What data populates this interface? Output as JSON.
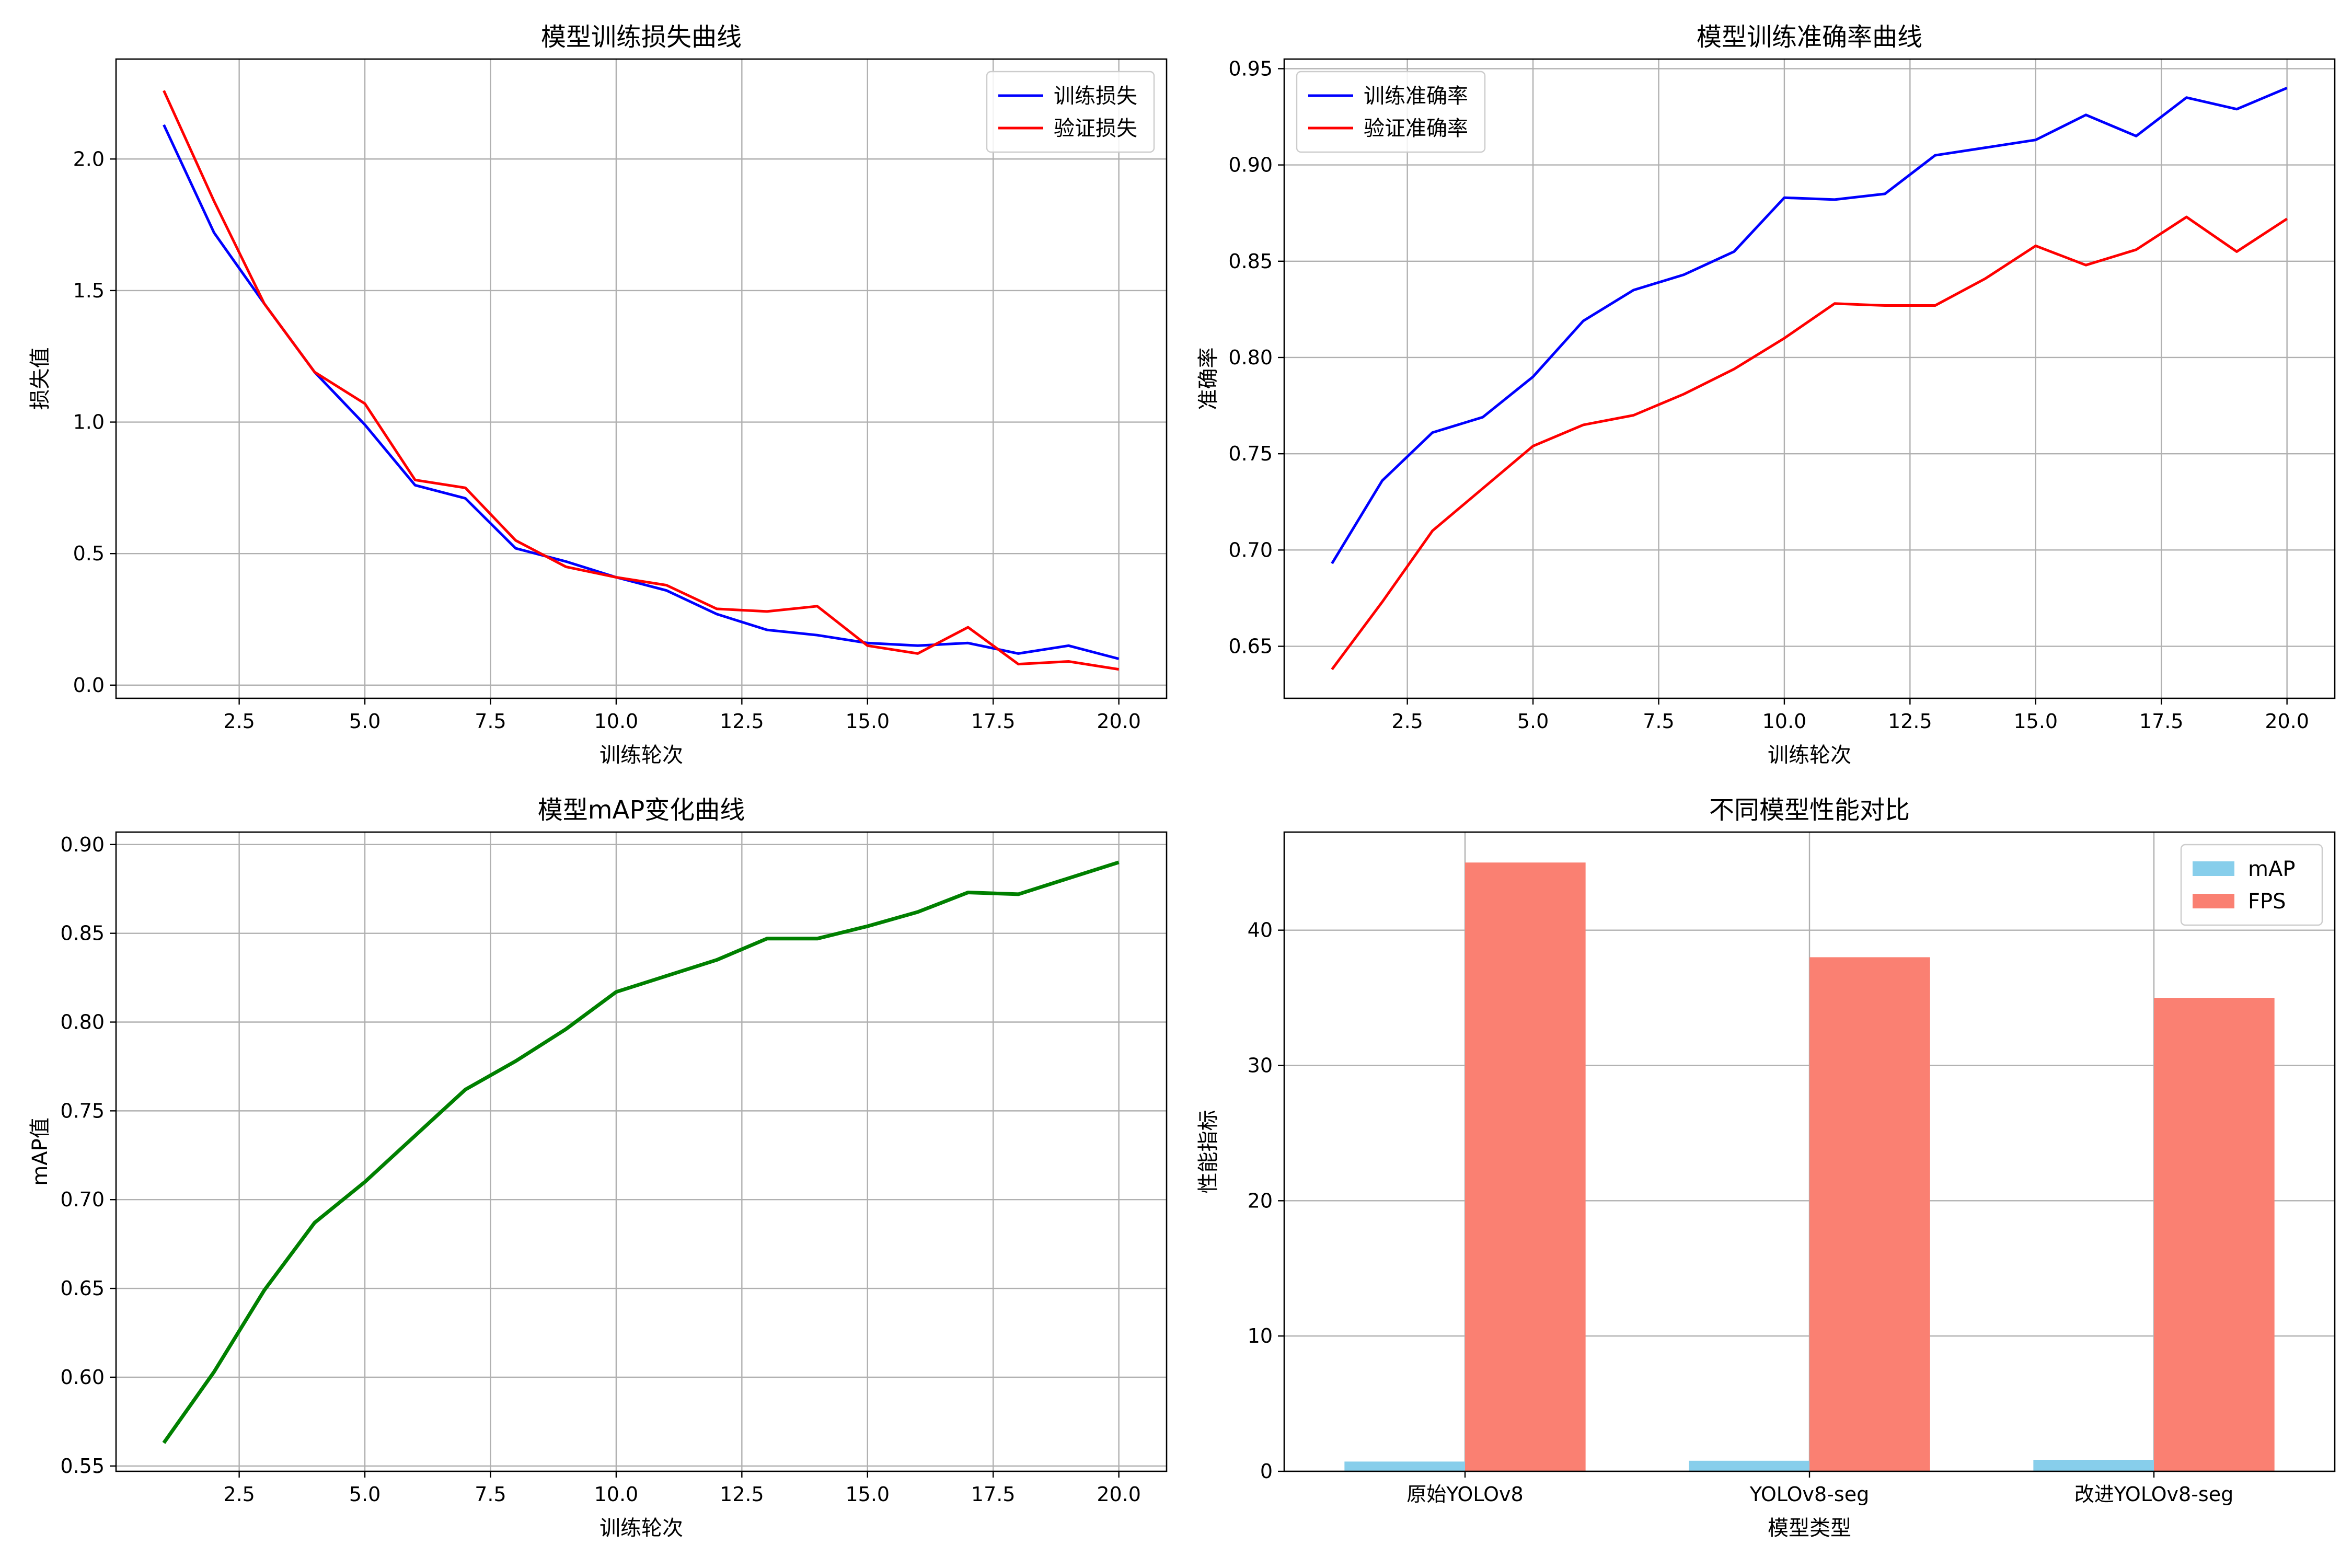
{
  "chart_data": [
    {
      "id": "loss",
      "type": "line",
      "title": "模型训练损失曲线",
      "xlabel": "训练轮次",
      "ylabel": "损失值",
      "grid": true,
      "legend_position": "top-right",
      "xlim": [
        0.05,
        20.95
      ],
      "ylim": [
        -0.05,
        2.38
      ],
      "xticks": [
        2.5,
        5.0,
        7.5,
        10.0,
        12.5,
        15.0,
        17.5,
        20.0
      ],
      "xtick_labels": [
        "2.5",
        "5.0",
        "7.5",
        "10.0",
        "12.5",
        "15.0",
        "17.5",
        "20.0"
      ],
      "yticks": [
        0.0,
        0.5,
        1.0,
        1.5,
        2.0
      ],
      "ytick_labels": [
        "0.0",
        "0.5",
        "1.0",
        "1.5",
        "2.0"
      ],
      "x": [
        1,
        2,
        3,
        4,
        5,
        6,
        7,
        8,
        9,
        10,
        11,
        12,
        13,
        14,
        15,
        16,
        17,
        18,
        19,
        20
      ],
      "series": [
        {
          "name": "训练损失",
          "color": "#0000ff",
          "values": [
            2.13,
            1.72,
            1.45,
            1.19,
            0.99,
            0.76,
            0.71,
            0.52,
            0.47,
            0.41,
            0.36,
            0.27,
            0.21,
            0.19,
            0.16,
            0.15,
            0.16,
            0.12,
            0.15,
            0.1
          ]
        },
        {
          "name": "验证损失",
          "color": "#ff0000",
          "values": [
            2.26,
            1.84,
            1.45,
            1.19,
            1.07,
            0.78,
            0.75,
            0.55,
            0.45,
            0.41,
            0.38,
            0.29,
            0.28,
            0.3,
            0.15,
            0.12,
            0.22,
            0.08,
            0.09,
            0.06
          ]
        }
      ]
    },
    {
      "id": "accuracy",
      "type": "line",
      "title": "模型训练准确率曲线",
      "xlabel": "训练轮次",
      "ylabel": "准确率",
      "grid": true,
      "legend_position": "top-left",
      "xlim": [
        0.05,
        20.95
      ],
      "ylim": [
        0.623,
        0.955
      ],
      "xticks": [
        2.5,
        5.0,
        7.5,
        10.0,
        12.5,
        15.0,
        17.5,
        20.0
      ],
      "xtick_labels": [
        "2.5",
        "5.0",
        "7.5",
        "10.0",
        "12.5",
        "15.0",
        "17.5",
        "20.0"
      ],
      "yticks": [
        0.65,
        0.7,
        0.75,
        0.8,
        0.85,
        0.9,
        0.95
      ],
      "ytick_labels": [
        "0.65",
        "0.70",
        "0.75",
        "0.80",
        "0.85",
        "0.90",
        "0.95"
      ],
      "x": [
        1,
        2,
        3,
        4,
        5,
        6,
        7,
        8,
        9,
        10,
        11,
        12,
        13,
        14,
        15,
        16,
        17,
        18,
        19,
        20
      ],
      "series": [
        {
          "name": "训练准确率",
          "color": "#0000ff",
          "values": [
            0.693,
            0.736,
            0.761,
            0.769,
            0.79,
            0.819,
            0.835,
            0.843,
            0.855,
            0.883,
            0.882,
            0.885,
            0.905,
            0.909,
            0.913,
            0.926,
            0.915,
            0.935,
            0.929,
            0.94
          ]
        },
        {
          "name": "验证准确率",
          "color": "#ff0000",
          "values": [
            0.638,
            0.673,
            0.71,
            0.732,
            0.754,
            0.765,
            0.77,
            0.781,
            0.794,
            0.81,
            0.828,
            0.827,
            0.827,
            0.841,
            0.858,
            0.848,
            0.856,
            0.873,
            0.855,
            0.872
          ]
        }
      ]
    },
    {
      "id": "map",
      "type": "line",
      "title": "模型mAP变化曲线",
      "xlabel": "训练轮次",
      "ylabel": "mAP值",
      "grid": true,
      "legend_position": "none",
      "xlim": [
        0.05,
        20.95
      ],
      "ylim": [
        0.547,
        0.907
      ],
      "xticks": [
        2.5,
        5.0,
        7.5,
        10.0,
        12.5,
        15.0,
        17.5,
        20.0
      ],
      "xtick_labels": [
        "2.5",
        "5.0",
        "7.5",
        "10.0",
        "12.5",
        "15.0",
        "17.5",
        "20.0"
      ],
      "yticks": [
        0.55,
        0.6,
        0.65,
        0.7,
        0.75,
        0.8,
        0.85,
        0.9
      ],
      "ytick_labels": [
        "0.55",
        "0.60",
        "0.65",
        "0.70",
        "0.75",
        "0.80",
        "0.85",
        "0.90"
      ],
      "x": [
        1,
        2,
        3,
        4,
        5,
        6,
        7,
        8,
        9,
        10,
        11,
        12,
        13,
        14,
        15,
        16,
        17,
        18,
        19,
        20
      ],
      "series": [
        {
          "name": "mAP",
          "color": "#008000",
          "values": [
            0.563,
            0.603,
            0.649,
            0.687,
            0.71,
            0.736,
            0.762,
            0.778,
            0.796,
            0.817,
            0.826,
            0.835,
            0.847,
            0.847,
            0.854,
            0.862,
            0.873,
            0.872,
            0.881,
            0.89
          ]
        }
      ]
    },
    {
      "id": "compare",
      "type": "bar",
      "title": "不同模型性能对比",
      "xlabel": "模型类型",
      "ylabel": "性能指标",
      "grid": true,
      "legend_position": "top-right",
      "categories": [
        "原始YOLOv8",
        "YOLOv8-seg",
        "改进YOLOv8-seg"
      ],
      "ylim": [
        0,
        47.25
      ],
      "yticks": [
        0,
        10,
        20,
        30,
        40
      ],
      "ytick_labels": [
        "0",
        "10",
        "20",
        "30",
        "40"
      ],
      "series": [
        {
          "name": "mAP",
          "color": "#87ceeb",
          "values": [
            0.72,
            0.78,
            0.85
          ]
        },
        {
          "name": "FPS",
          "color": "#fa8072",
          "values": [
            45,
            38,
            35
          ]
        }
      ]
    }
  ]
}
